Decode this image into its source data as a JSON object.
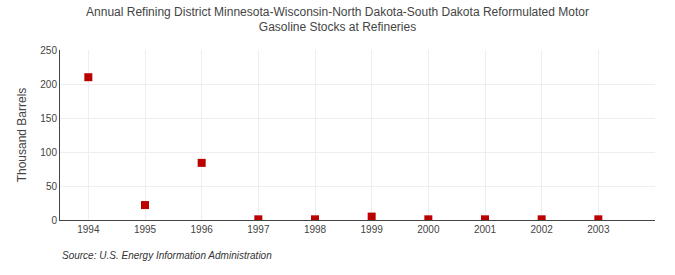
{
  "chart_data": {
    "type": "scatter",
    "title": "Annual Refining District Minnesota-Wisconsin-North Dakota-South Dakota Reformulated Motor\nGasoline Stocks at Refineries",
    "ylabel": "Thousand Barrels",
    "annotations": [
      "Source: U.S. Energy Information Administration"
    ],
    "x": [
      1994,
      1995,
      1996,
      1997,
      1998,
      1999,
      2000,
      2001,
      2002,
      2003
    ],
    "values": [
      210,
      22,
      84,
      1,
      1,
      5,
      1,
      1,
      1,
      1
    ],
    "color": "#bb0000",
    "marker": "square",
    "xlim": [
      1993.5,
      2004.0
    ],
    "xticks": [
      1994,
      1995,
      1996,
      1997,
      1998,
      1999,
      2000,
      2001,
      2002,
      2003
    ],
    "ylim": [
      0,
      250
    ],
    "yticks": [
      0,
      50,
      100,
      150,
      200,
      250
    ],
    "grid": true
  }
}
